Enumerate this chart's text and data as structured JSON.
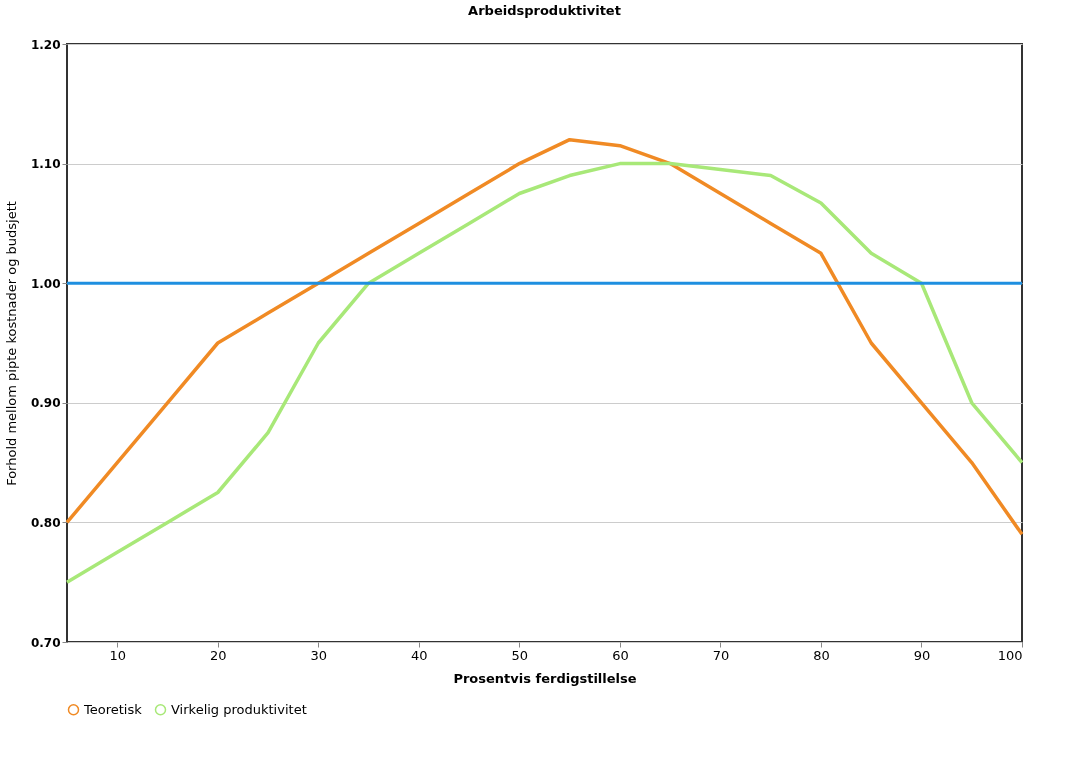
{
  "chart_data": {
    "type": "line",
    "title": "Arbeidsproduktivitet",
    "xlabel": "Prosentvis ferdigstillelse",
    "ylabel": "Forhold mellom pipte kostnader og budsjett",
    "x": [
      5,
      10,
      15,
      20,
      25,
      30,
      35,
      40,
      45,
      50,
      55,
      60,
      65,
      70,
      75,
      80,
      85,
      90,
      95,
      100
    ],
    "series": [
      {
        "name": "Teoretisk",
        "color": "#f08a24",
        "values": [
          0.8,
          0.85,
          0.9,
          0.95,
          0.975,
          1.0,
          1.025,
          1.05,
          1.075,
          1.1,
          1.12,
          1.115,
          1.1,
          1.075,
          1.05,
          1.025,
          0.95,
          0.9,
          0.85,
          0.79
        ]
      },
      {
        "name": "Virkelig produktivitet",
        "color": "#a8e878",
        "values": [
          0.75,
          0.775,
          0.8,
          0.825,
          0.875,
          0.95,
          1.0,
          1.025,
          1.05,
          1.075,
          1.09,
          1.1,
          1.1,
          1.095,
          1.09,
          1.067,
          1.025,
          1.0,
          0.9,
          0.85
        ]
      }
    ],
    "xlim": [
      5,
      100
    ],
    "xticks": [
      10,
      20,
      30,
      40,
      50,
      60,
      70,
      80,
      90,
      100
    ],
    "ylim": [
      0.7,
      1.2
    ],
    "yticks": [
      {
        "value": 0.7,
        "label": "0.70"
      },
      {
        "value": 0.8,
        "label": "0.80"
      },
      {
        "value": 0.9,
        "label": "0.90"
      },
      {
        "value": 1.0,
        "label": "1.00"
      },
      {
        "value": 1.1,
        "label": "1.10"
      },
      {
        "value": 1.2,
        "label": "1.20"
      }
    ],
    "ref_lines": [
      {
        "axis": "y",
        "value": 1.0,
        "color": "#1e8fe0"
      }
    ],
    "grid": "y",
    "legend": "bottom",
    "marker": "none",
    "line_style": "solid"
  }
}
